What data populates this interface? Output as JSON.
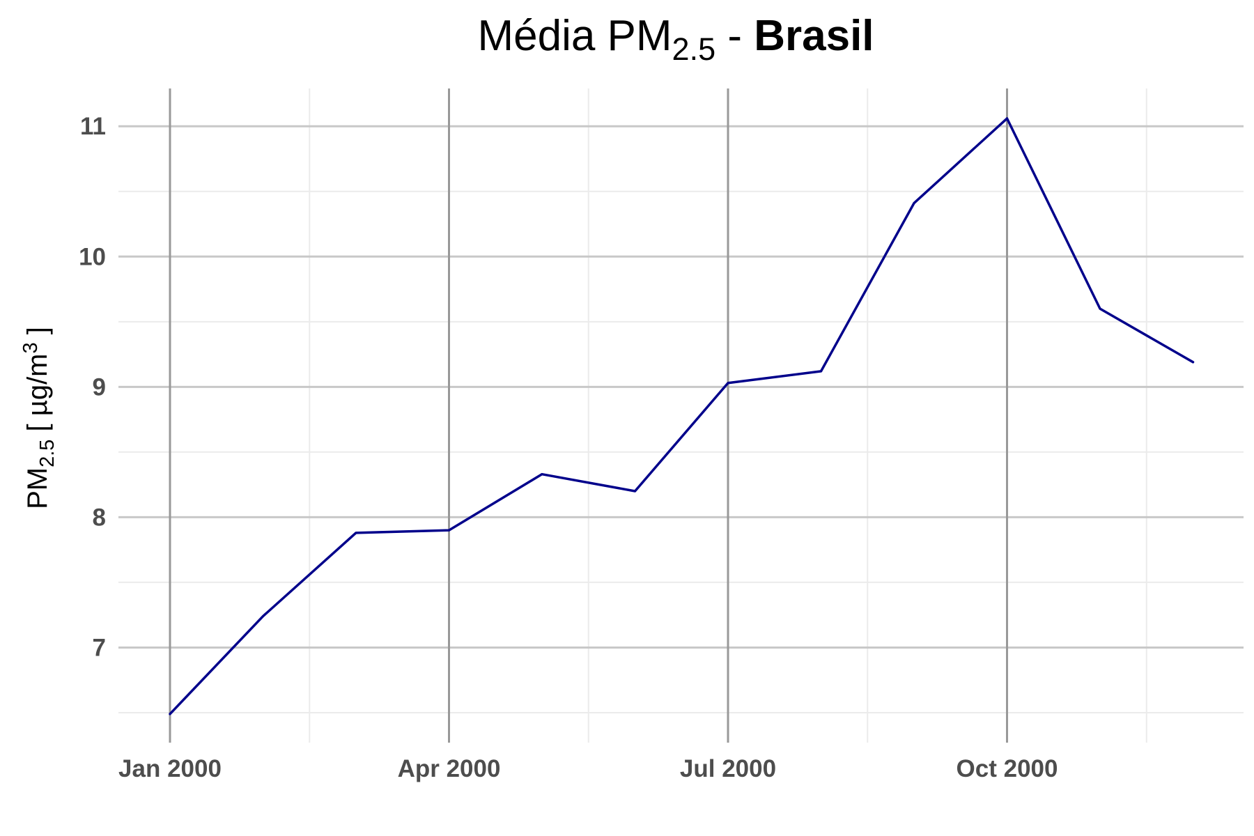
{
  "chart_data": {
    "type": "line",
    "title": {
      "prefix": "Média PM",
      "subscript": "2.5",
      "separator": " - ",
      "bold": "Brasil"
    },
    "ylabel": {
      "prefix": "PM",
      "subscript": "2.5",
      "middle": " [ µg/m",
      "superscript": "3",
      "suffix": " ]"
    },
    "xlabel": "",
    "x": [
      "2000-01",
      "2000-02",
      "2000-03",
      "2000-04",
      "2000-05",
      "2000-06",
      "2000-07",
      "2000-08",
      "2000-09",
      "2000-10",
      "2000-11",
      "2000-12"
    ],
    "series": [
      {
        "values": [
          6.49,
          7.24,
          7.88,
          7.9,
          8.33,
          8.2,
          9.03,
          9.12,
          10.41,
          11.06,
          9.6,
          9.19
        ],
        "color": "#00008B"
      }
    ],
    "x_ticks": [
      {
        "label": "Jan 2000",
        "index": 0
      },
      {
        "label": "Apr 2000",
        "index": 3
      },
      {
        "label": "Jul 2000",
        "index": 6
      },
      {
        "label": "Oct 2000",
        "index": 9
      }
    ],
    "y_ticks": [
      "7",
      "8",
      "9",
      "10",
      "11"
    ],
    "ylim": [
      6.27,
      11.29
    ],
    "grid": true,
    "legend": "none",
    "colors": {
      "line": "#00008B",
      "major_grid_y": "#c8c8c8",
      "major_grid_x": "#999999",
      "minor_grid": "#ebebeb",
      "tick_text": "#4d4d4d"
    }
  }
}
